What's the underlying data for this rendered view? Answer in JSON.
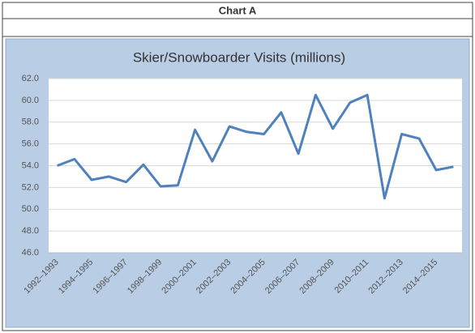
{
  "header": {
    "title": "Chart A"
  },
  "chart_data": {
    "type": "line",
    "title": "Skier/Snowboarder Visits (millions)",
    "categories": [
      "1992–1993",
      null,
      "1994–1995",
      null,
      "1996–1997",
      null,
      "1998–1999",
      null,
      "2000–2001",
      null,
      "2002–2003",
      null,
      "2004–2005",
      null,
      "2006–2007",
      null,
      "2008–2009",
      null,
      "2010–2011",
      null,
      "2012–2013",
      null,
      "2014–2015",
      null
    ],
    "series": [
      {
        "name": "Skier/Snowboarder Visits",
        "color": "#4f81bd",
        "values": [
          54.0,
          54.6,
          52.7,
          53.0,
          52.5,
          54.1,
          52.1,
          52.2,
          57.3,
          54.4,
          57.6,
          57.1,
          56.9,
          58.9,
          55.1,
          60.5,
          57.4,
          59.8,
          60.5,
          51.0,
          56.9,
          56.5,
          53.6,
          53.9
        ]
      }
    ],
    "ylim": [
      46,
      62
    ],
    "yticks": [
      {
        "value": 46,
        "label": "46.0"
      },
      {
        "value": 48,
        "label": "48.0"
      },
      {
        "value": 50,
        "label": "50.0"
      },
      {
        "value": 52,
        "label": "52.0"
      },
      {
        "value": 54,
        "label": "54.0"
      },
      {
        "value": 56,
        "label": "56.0"
      },
      {
        "value": 58,
        "label": "58.0"
      },
      {
        "value": 60,
        "label": "60.0"
      },
      {
        "value": 62,
        "label": "62.0"
      }
    ],
    "grid": true
  }
}
